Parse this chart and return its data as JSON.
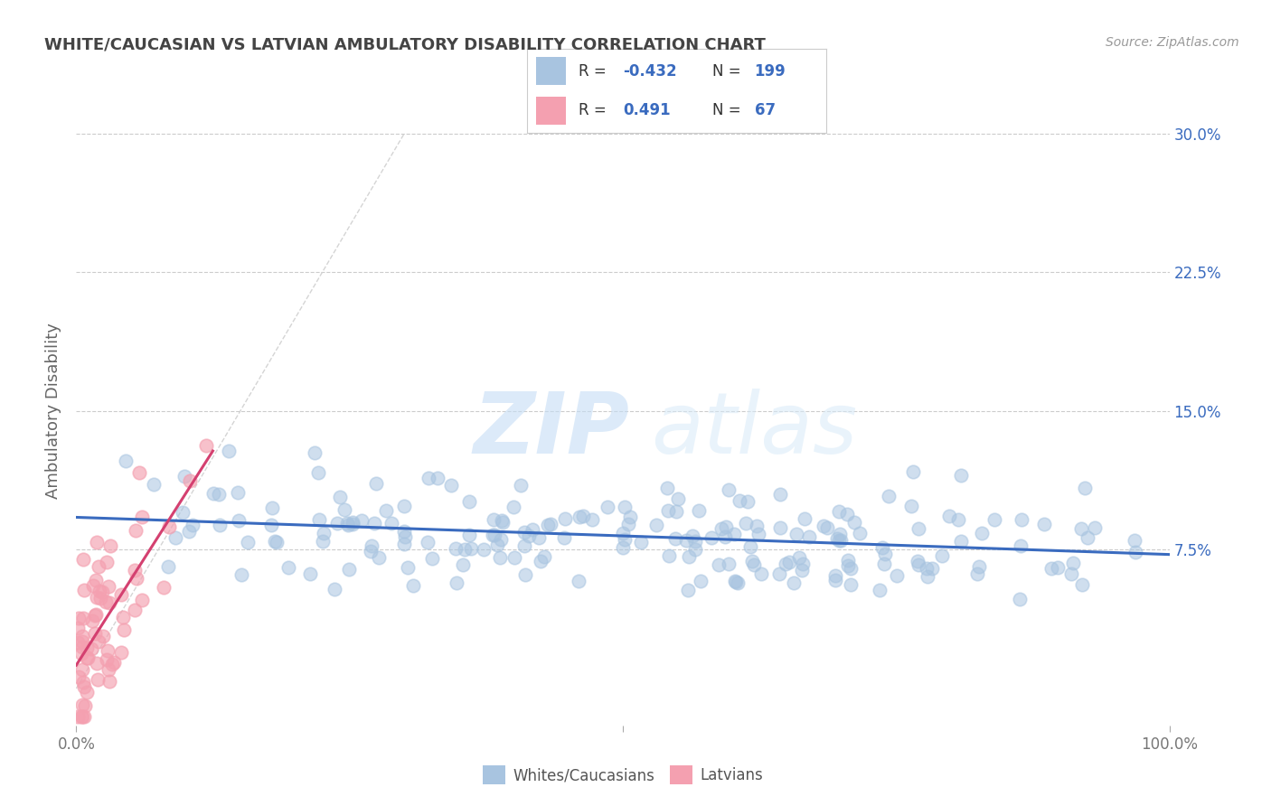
{
  "title": "WHITE/CAUCASIAN VS LATVIAN AMBULATORY DISABILITY CORRELATION CHART",
  "source": "Source: ZipAtlas.com",
  "ylabel": "Ambulatory Disability",
  "watermark_zip": "ZIP",
  "watermark_atlas": "atlas",
  "blue_R": -0.432,
  "blue_N": 199,
  "pink_R": 0.491,
  "pink_N": 67,
  "xlim": [
    0,
    1.0
  ],
  "ylim": [
    -0.02,
    0.32
  ],
  "ytick_positions": [
    0.075,
    0.15,
    0.225,
    0.3
  ],
  "ytick_labels": [
    "7.5%",
    "15.0%",
    "22.5%",
    "30.0%"
  ],
  "blue_scatter_color": "#a8c4e0",
  "pink_scatter_color": "#f4a0b0",
  "blue_line_color": "#3a6bbf",
  "pink_line_color": "#d44070",
  "diagonal_color": "#d0d0d0",
  "background_color": "#ffffff",
  "legend_blue_label": "Whites/Caucasians",
  "legend_pink_label": "Latvians",
  "seed": 42
}
